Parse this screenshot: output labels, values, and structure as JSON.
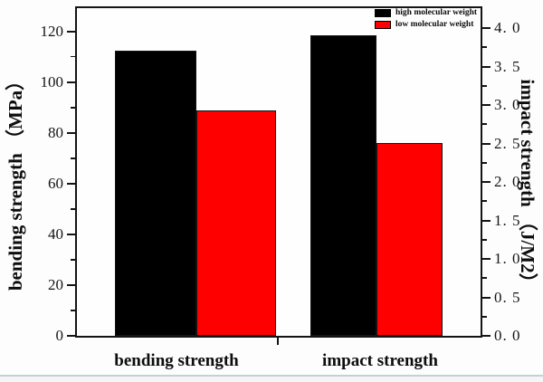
{
  "chart_data": {
    "type": "bar",
    "title": "",
    "categories": [
      "bending strength",
      "impact strength"
    ],
    "series": [
      {
        "name": "high molecular weight",
        "color": "#000000",
        "values": [
          112.5,
          3.9
        ]
      },
      {
        "name": "low molecular weight",
        "color": "#ff0000",
        "values": [
          89,
          2.5
        ]
      }
    ],
    "value_axis_per_category": [
      "left",
      "right"
    ],
    "left_axis": {
      "title": "bending strength （MPa）",
      "range": [
        0,
        129
      ],
      "major_tick_values": [
        0,
        20,
        40,
        60,
        80,
        100,
        120
      ],
      "major_tick_labels": [
        "0",
        "20",
        "40",
        "60",
        "80",
        "100",
        "120"
      ],
      "minor_tick_values": [
        10,
        30,
        50,
        70,
        90,
        110
      ]
    },
    "right_axis": {
      "title": "impact strength （J/M2）",
      "range": [
        0,
        4.3
      ],
      "major_tick_values": [
        0,
        0.5,
        1,
        1.5,
        2,
        2.5,
        3,
        3.5,
        4
      ],
      "major_tick_labels": [
        "0. 0",
        "0. 5",
        "1. 0",
        "1. 5",
        "2. 0",
        "2. 5",
        "3. 0",
        "3. 5",
        "4. 0"
      ],
      "minor_tick_values": [
        0.25,
        0.75,
        1.25,
        1.75,
        2.25,
        2.75,
        3.25,
        3.75
      ]
    },
    "legend": {
      "position": "top-right-inside",
      "items": [
        {
          "label": "high molecular weight",
          "color": "#000000"
        },
        {
          "label": "low molecular weight",
          "color": "#ff0000"
        }
      ]
    },
    "grid": false
  },
  "colors": {
    "bar_black": "#000000",
    "bar_red": "#ff0000",
    "axis": "#141414",
    "background": "#fdfdfd",
    "bottom_strip_line": "#c9ced3",
    "bottom_strip_fill": "#f4f5f6"
  }
}
